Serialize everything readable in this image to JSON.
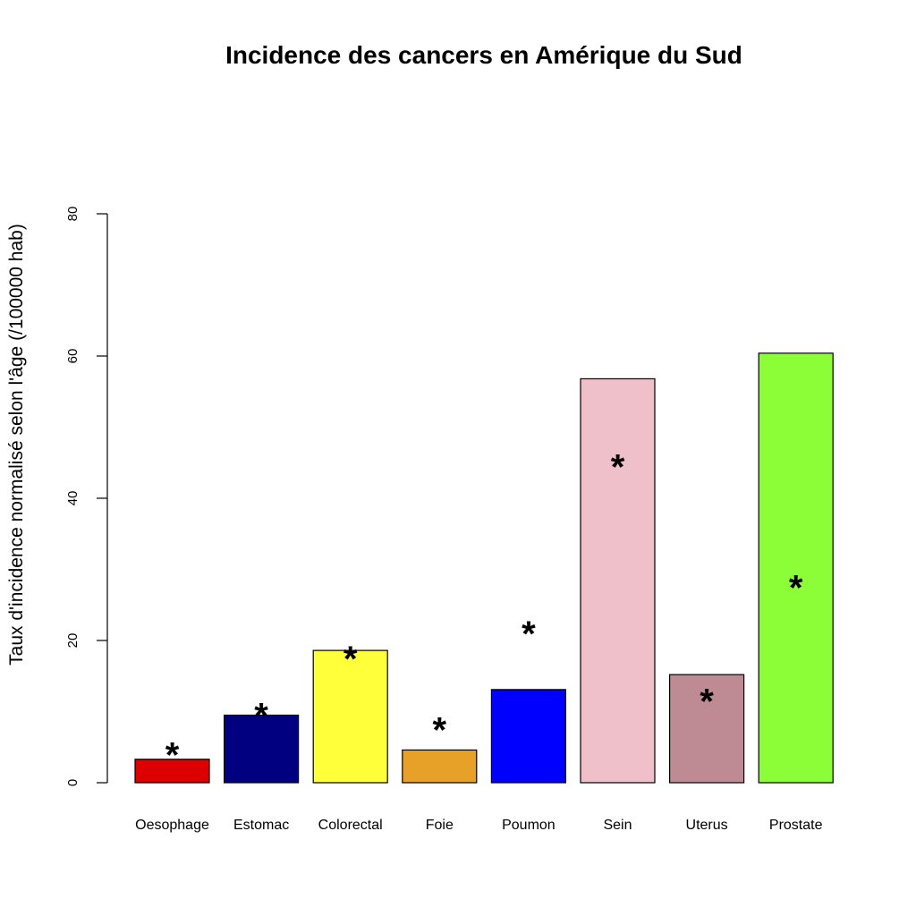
{
  "chart_data": {
    "type": "bar",
    "title": "Incidence des cancers en Amérique du Sud",
    "xlabel": "",
    "ylabel": "Taux d'incidence normalisé selon l'âge (/100000 hab)",
    "ylim": [
      0,
      80
    ],
    "yticks": [
      0,
      20,
      40,
      60,
      80
    ],
    "grid": false,
    "categories": [
      "Oesophage",
      "Estomac",
      "Colorectal",
      "Foie",
      "Poumon",
      "Sein",
      "Uterus",
      "Prostate"
    ],
    "values": [
      3.3,
      9.5,
      18.6,
      4.6,
      13.1,
      56.8,
      15.2,
      60.4
    ],
    "colors": [
      "#dd0000",
      "#000080",
      "#ffff3a",
      "#e8a128",
      "#0000ff",
      "#efbfca",
      "#be8b95",
      "#8cfe37"
    ],
    "markers": {
      "symbol": "*",
      "values": [
        5,
        10.5,
        18.5,
        8.5,
        22,
        45.5,
        12.5,
        28.5
      ]
    }
  }
}
